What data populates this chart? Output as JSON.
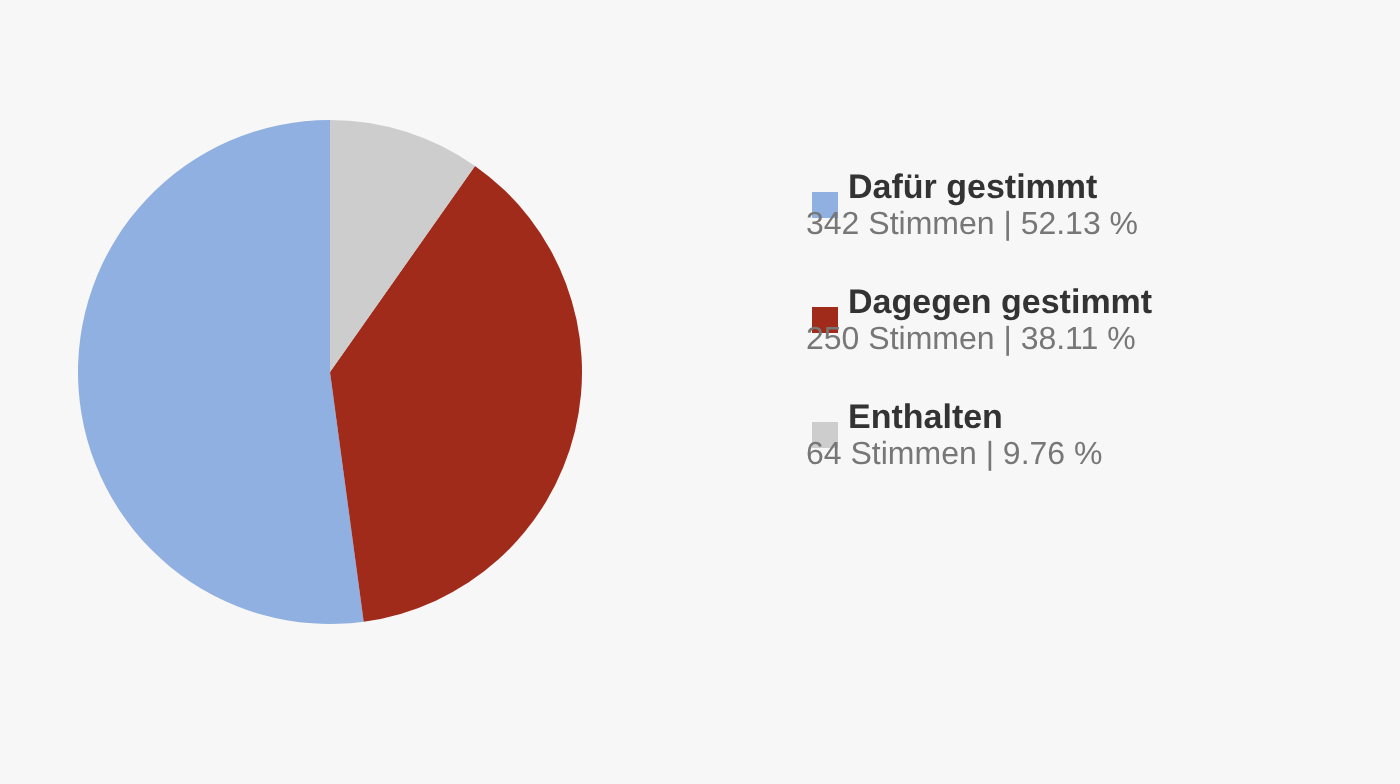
{
  "chart_data": {
    "type": "pie",
    "categories": [
      "Dafür gestimmt",
      "Dagegen gestimmt",
      "Enthalten"
    ],
    "values": [
      342,
      250,
      64
    ],
    "colors": [
      "#8fb0e0",
      "#a02b1a",
      "#cdcdcd"
    ],
    "value_labels": [
      "342 Stimmen | 52.13 %",
      "250 Stimmen | 38.11 %",
      "64 Stimmen | 9.76 %"
    ],
    "legend": "right"
  }
}
